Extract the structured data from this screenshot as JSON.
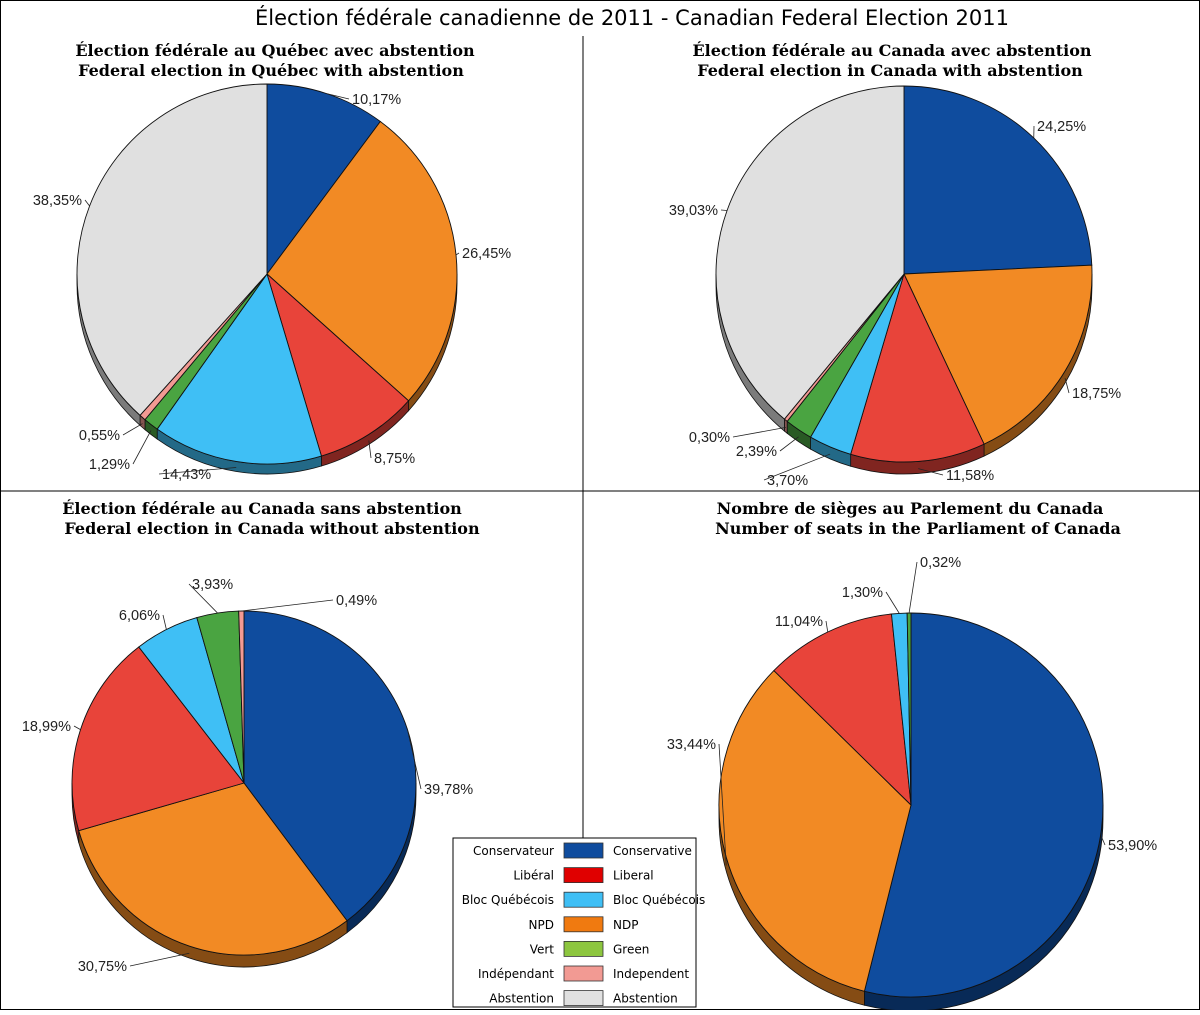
{
  "title": "Élection fédérale canadienne de 2011 - Canadian Federal Election 2011",
  "colors": {
    "Conservative": "#0F4C9E",
    "Liberal": "#E8443A",
    "BlocQuebecois": "#3FBFF5",
    "NDP": "#F28A24",
    "Green": "#4AA441",
    "Independent": "#F29A93",
    "Abstention": "#E0E0E0"
  },
  "legend": {
    "entries": [
      {
        "fr": "Conservateur",
        "en": "Conservative",
        "color": "#0F4C9E"
      },
      {
        "fr": "Libéral",
        "en": "Liberal",
        "color": "#E00000"
      },
      {
        "fr": "Bloc Québécois",
        "en": "Bloc Québécois",
        "color": "#3FBFF5"
      },
      {
        "fr": "NPD",
        "en": "NDP",
        "color": "#F07A10"
      },
      {
        "fr": "Vert",
        "en": "Green",
        "color": "#8DC63F"
      },
      {
        "fr": "Indépendant",
        "en": "Independent",
        "color": "#F29A93"
      },
      {
        "fr": "Abstention",
        "en": "Abstention",
        "color": "#E0E0E0"
      }
    ]
  },
  "chart_data": [
    {
      "type": "pie",
      "title_fr": "Élection fédérale au Québec avec abstention",
      "title_en": "Federal election in Québec with abstention",
      "slices": [
        {
          "party": "Conservative",
          "value": 10.17,
          "label": "10,17%"
        },
        {
          "party": "NDP",
          "value": 26.45,
          "label": "26,45%"
        },
        {
          "party": "Liberal",
          "value": 8.75,
          "label": "8,75%"
        },
        {
          "party": "BlocQuebecois",
          "value": 14.43,
          "label": "14,43%"
        },
        {
          "party": "Green",
          "value": 1.29,
          "label": "1,29%"
        },
        {
          "party": "Independent",
          "value": 0.55,
          "label": "0,55%"
        },
        {
          "party": "Abstention",
          "value": 38.35,
          "label": "38,35%"
        }
      ]
    },
    {
      "type": "pie",
      "title_fr": "Élection fédérale au Canada avec abstention",
      "title_en": "Federal election in Canada with abstention",
      "slices": [
        {
          "party": "Conservative",
          "value": 24.25,
          "label": "24,25%"
        },
        {
          "party": "NDP",
          "value": 18.75,
          "label": "18,75%"
        },
        {
          "party": "Liberal",
          "value": 11.58,
          "label": "11,58%"
        },
        {
          "party": "BlocQuebecois",
          "value": 3.7,
          "label": "3,70%"
        },
        {
          "party": "Green",
          "value": 2.39,
          "label": "2,39%"
        },
        {
          "party": "Independent",
          "value": 0.3,
          "label": "0,30%"
        },
        {
          "party": "Abstention",
          "value": 39.03,
          "label": "39,03%"
        }
      ]
    },
    {
      "type": "pie",
      "title_fr": "Élection fédérale au Canada sans abstention",
      "title_en": "Federal election in Canada without abstention",
      "slices": [
        {
          "party": "Conservative",
          "value": 39.78,
          "label": "39,78%"
        },
        {
          "party": "NDP",
          "value": 30.75,
          "label": "30,75%"
        },
        {
          "party": "Liberal",
          "value": 18.99,
          "label": "18,99%"
        },
        {
          "party": "BlocQuebecois",
          "value": 6.06,
          "label": "6,06%"
        },
        {
          "party": "Green",
          "value": 3.93,
          "label": "3,93%"
        },
        {
          "party": "Independent",
          "value": 0.49,
          "label": "0,49%"
        }
      ]
    },
    {
      "type": "pie",
      "title_fr": "Nombre de sièges au Parlement du Canada",
      "title_en": "Number of seats in the Parliament of Canada",
      "slices": [
        {
          "party": "Conservative",
          "value": 53.9,
          "label": "53,90%"
        },
        {
          "party": "NDP",
          "value": 33.44,
          "label": "33,44%"
        },
        {
          "party": "Liberal",
          "value": 11.04,
          "label": "11,04%"
        },
        {
          "party": "BlocQuebecois",
          "value": 1.3,
          "label": "1,30%"
        },
        {
          "party": "Green",
          "value": 0.32,
          "label": "0,32%"
        }
      ]
    }
  ]
}
